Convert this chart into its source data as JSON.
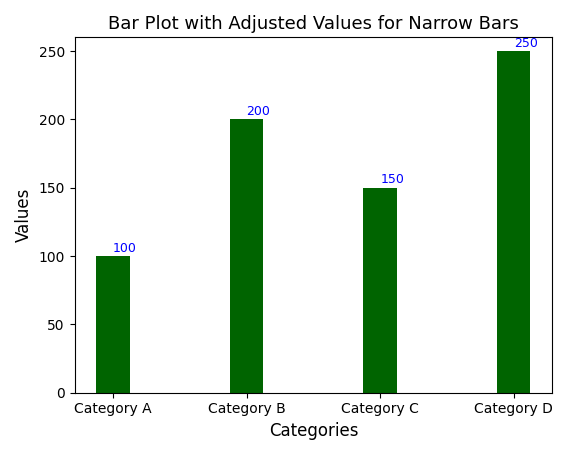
{
  "categories": [
    "Category A",
    "Category B",
    "Category C",
    "Category D"
  ],
  "values": [
    100,
    200,
    150,
    250
  ],
  "bar_color": "#006400",
  "bar_width": 0.25,
  "title": "Bar Plot with Adjusted Values for Narrow Bars",
  "xlabel": "Categories",
  "ylabel": "Values",
  "ylim": [
    0,
    260
  ],
  "annotation_color": "blue",
  "annotation_fontsize": 9,
  "title_fontsize": 13,
  "label_fontsize": 12,
  "clip_on": false
}
